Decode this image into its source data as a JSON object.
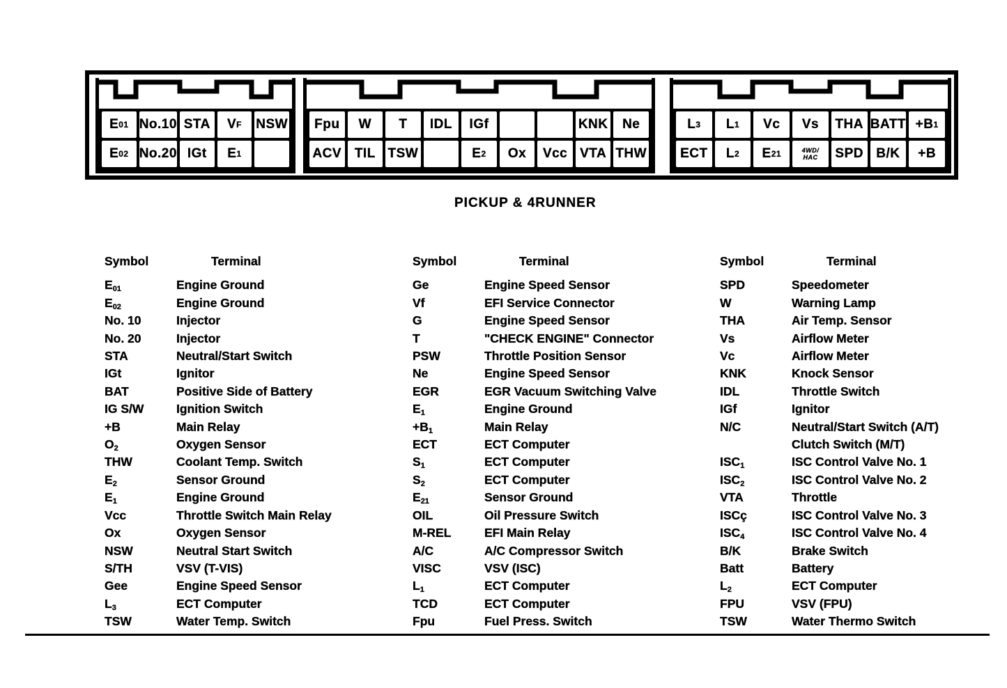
{
  "page": {
    "caption": "PICKUP & 4RUNNER"
  },
  "connectors": [
    {
      "name": "connector-left",
      "rows": [
        [
          "E_{01}",
          "No.10",
          "STA",
          "V_{F}",
          "NSW"
        ],
        [
          "E_{02}",
          "No.20",
          "IGt",
          "E_{1}",
          ""
        ]
      ]
    },
    {
      "name": "connector-middle",
      "rows": [
        [
          "Fpu",
          "W",
          "T",
          "IDL",
          "IGf",
          "",
          "",
          "KNK",
          "Ne"
        ],
        [
          "ACV",
          "TIL",
          "TSW",
          "",
          "E_{2}",
          "Ox",
          "Vcc",
          "VTA",
          "THW"
        ]
      ]
    },
    {
      "name": "connector-right",
      "rows": [
        [
          "L_{3}",
          "L_{1}",
          "Vc",
          "Vs",
          "THA",
          "BATT",
          "+B_{1}"
        ],
        [
          "ECT",
          "L_{2}",
          "E_{21}",
          "4WD/\nHAC",
          "SPD",
          "B/K",
          "+B"
        ]
      ]
    }
  ],
  "tables": [
    {
      "headers": {
        "symbol": "Symbol",
        "terminal": "Terminal"
      },
      "rows": [
        [
          "E_{01}",
          "Engine Ground"
        ],
        [
          "E_{02}",
          "Engine Ground"
        ],
        [
          "No. 10",
          "Injector"
        ],
        [
          "No. 20",
          "Injector"
        ],
        [
          "STA",
          "Neutral/Start Switch"
        ],
        [
          "IGt",
          "Ignitor"
        ],
        [
          "BAT",
          "Positive Side of Battery"
        ],
        [
          "IG S/W",
          "Ignition Switch"
        ],
        [
          "+B",
          "Main Relay"
        ],
        [
          "O_{2}",
          "Oxygen Sensor"
        ],
        [
          "THW",
          "Coolant Temp. Switch"
        ],
        [
          "E_{2}",
          "Sensor Ground"
        ],
        [
          "E_{1}",
          "Engine Ground"
        ],
        [
          "Vcc",
          "Throttle Switch Main Relay"
        ],
        [
          "Ox",
          "Oxygen Sensor"
        ],
        [
          "NSW",
          "Neutral Start Switch"
        ],
        [
          "S/TH",
          "VSV (T-VIS)"
        ],
        [
          "Gee",
          "Engine Speed Sensor"
        ],
        [
          "L_{3}",
          "ECT Computer"
        ],
        [
          "TSW",
          "Water Temp. Switch"
        ]
      ]
    },
    {
      "headers": {
        "symbol": "Symbol",
        "terminal": "Terminal"
      },
      "rows": [
        [
          "Ge",
          "Engine Speed Sensor"
        ],
        [
          "Vf",
          "EFI Service Connector"
        ],
        [
          "G",
          "Engine Speed Sensor"
        ],
        [
          "T",
          "\"CHECK ENGINE\" Connector"
        ],
        [
          "PSW",
          "Throttle Position Sensor"
        ],
        [
          "Ne",
          "Engine Speed Sensor"
        ],
        [
          "EGR",
          "EGR Vacuum Switching Valve"
        ],
        [
          "E_{1}",
          "Engine Ground"
        ],
        [
          "+B_{1}",
          "Main Relay"
        ],
        [
          "ECT",
          "ECT Computer"
        ],
        [
          "S_{1}",
          "ECT Computer"
        ],
        [
          "S_{2}",
          "ECT Computer"
        ],
        [
          "E_{21}",
          "Sensor Ground"
        ],
        [
          "OIL",
          "Oil Pressure Switch"
        ],
        [
          "M-REL",
          "EFI Main Relay"
        ],
        [
          "A/C",
          "A/C Compressor Switch"
        ],
        [
          "VISC",
          "VSV (ISC)"
        ],
        [
          "L_{1}",
          "ECT Computer"
        ],
        [
          "TCD",
          "ECT Computer"
        ],
        [
          "Fpu",
          "Fuel Press. Switch"
        ]
      ]
    },
    {
      "headers": {
        "symbol": "Symbol",
        "terminal": "Terminal"
      },
      "rows": [
        [
          "SPD",
          "Speedometer"
        ],
        [
          "W",
          "Warning Lamp"
        ],
        [
          "THA",
          "Air Temp. Sensor"
        ],
        [
          "Vs",
          "Airflow Meter"
        ],
        [
          "Vc",
          "Airflow Meter"
        ],
        [
          "KNK",
          "Knock Sensor"
        ],
        [
          "IDL",
          "Throttle Switch"
        ],
        [
          "IGf",
          "Ignitor"
        ],
        [
          "N/C",
          "Neutral/Start Switch (A/T)\nClutch Switch (M/T)"
        ],
        [
          "ISC_{1}",
          "ISC Control Valve No. 1"
        ],
        [
          "ISC_{2}",
          "ISC Control Valve No. 2"
        ],
        [
          "VTA",
          "Throttle"
        ],
        [
          "ISCç",
          "ISC Control Valve No. 3"
        ],
        [
          "ISC_{4}",
          "ISC Control Valve No. 4"
        ],
        [
          "B/K",
          "Brake Switch"
        ],
        [
          "Batt",
          "Battery"
        ],
        [
          "L_{2}",
          "ECT Computer"
        ],
        [
          "FPU",
          "VSV (FPU)"
        ],
        [
          "TSW",
          "Water Thermo Switch"
        ]
      ]
    }
  ]
}
